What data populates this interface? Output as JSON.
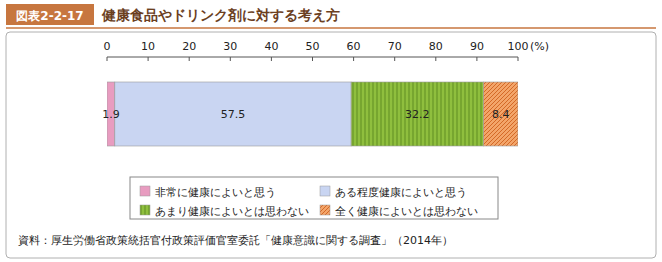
{
  "chart_data": {
    "type": "bar",
    "figure_number": "図表2-2-17",
    "title": "健康食品やドリンク剤に対する考え方",
    "source": "資料：厚生労働省政策統括官付政策評価官室委託「健康意識に関する調査」（2014年）",
    "orientation": "horizontal",
    "stacked": true,
    "data_labels": true,
    "categories": [
      null
    ],
    "xlim": [
      0,
      100
    ],
    "xticks": [
      0,
      10,
      20,
      30,
      40,
      50,
      60,
      70,
      80,
      90,
      100
    ],
    "xlabel": "(%)",
    "series": [
      {
        "name": "非常に健康によいと思う",
        "color": "#e89cc0",
        "values": [
          1.9
        ]
      },
      {
        "name": "ある程度健康によいと思う",
        "color": "#c9d5f2",
        "values": [
          57.5
        ]
      },
      {
        "name": "あまり健康によいとは思わない",
        "color": "#8fbf3e",
        "values": [
          32.2
        ]
      },
      {
        "name": "全く健康によいとは思わない",
        "color": "#f3a56a",
        "values": [
          8.4
        ]
      }
    ]
  }
}
